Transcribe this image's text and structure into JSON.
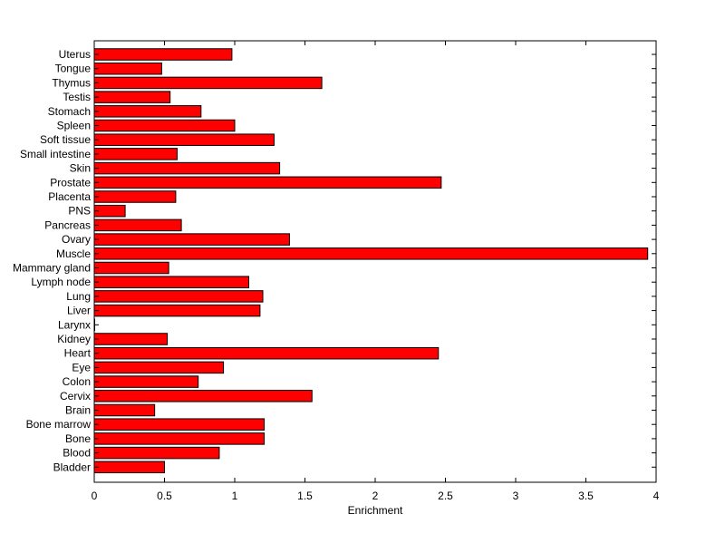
{
  "chart_data": {
    "type": "bar",
    "orientation": "horizontal",
    "categories": [
      "Uterus",
      "Tongue",
      "Thymus",
      "Testis",
      "Stomach",
      "Spleen",
      "Soft tissue",
      "Small intestine",
      "Skin",
      "Prostate",
      "Placenta",
      "PNS",
      "Pancreas",
      "Ovary",
      "Muscle",
      "Mammary gland",
      "Lymph node",
      "Lung",
      "Liver",
      "Larynx",
      "Kidney",
      "Heart",
      "Eye",
      "Colon",
      "Cervix",
      "Brain",
      "Bone marrow",
      "Bone",
      "Blood",
      "Bladder"
    ],
    "values": [
      0.98,
      0.48,
      1.62,
      0.54,
      0.76,
      1.0,
      1.28,
      0.59,
      1.32,
      2.47,
      0.58,
      0.22,
      0.62,
      1.39,
      3.94,
      0.53,
      1.1,
      1.2,
      1.18,
      0.0,
      0.52,
      2.45,
      0.92,
      0.74,
      1.55,
      0.43,
      1.21,
      1.21,
      0.89,
      0.5
    ],
    "xlabel": "Enrichment",
    "ylabel": "",
    "title": "",
    "xlim": [
      0,
      4
    ],
    "xticks": [
      "0",
      "0.5",
      "1",
      "1.5",
      "2",
      "2.5",
      "3",
      "3.5",
      "4"
    ],
    "bar_color": "#ff0000",
    "edge_color": "#000000",
    "grid": false
  }
}
